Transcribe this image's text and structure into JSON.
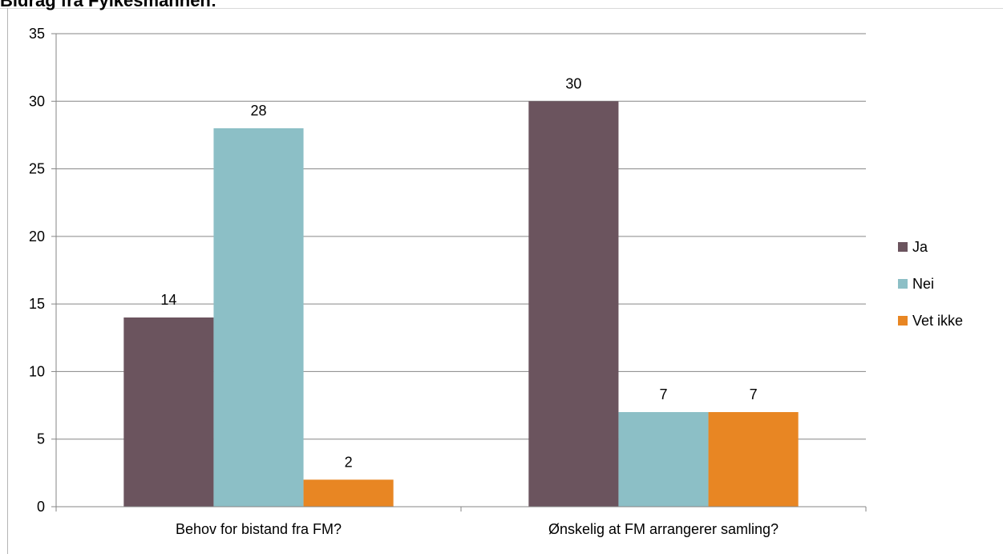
{
  "chart_data": {
    "type": "bar",
    "title": "Bidrag fra Fylkesmannen:",
    "categories": [
      "Behov for bistand fra FM?",
      "Ønskelig at FM arrangerer samling?"
    ],
    "series": [
      {
        "name": "Ja",
        "values": [
          14,
          30
        ],
        "color": "#6b545e"
      },
      {
        "name": "Nei",
        "values": [
          28,
          7
        ],
        "color": "#8cbfc6"
      },
      {
        "name": "Vet ikke",
        "values": [
          2,
          7
        ],
        "color": "#e88623"
      }
    ],
    "yticks": [
      "0",
      "5",
      "10",
      "15",
      "20",
      "25",
      "30",
      "35"
    ],
    "ylim": [
      0,
      35
    ],
    "xlabel": "",
    "ylabel": "",
    "grid": true,
    "legend": "right"
  }
}
